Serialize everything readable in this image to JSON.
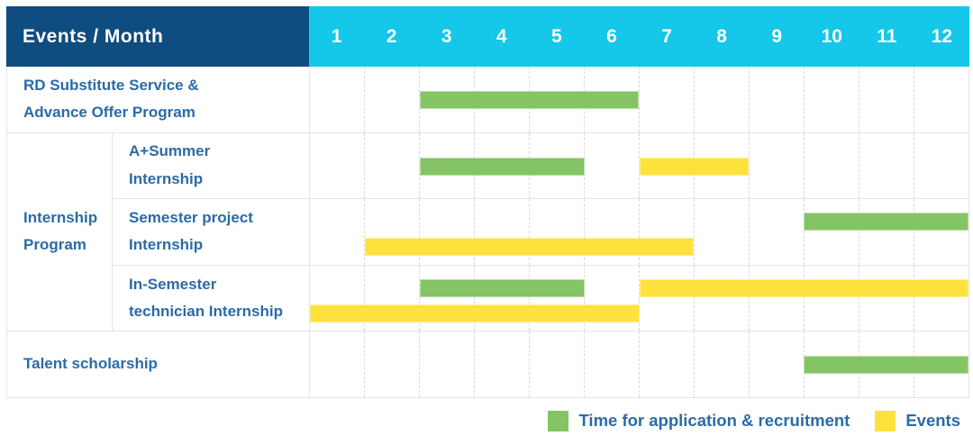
{
  "colors": {
    "header_bg": "#0F4C7F",
    "months_bg": "#15C7E9",
    "green": "#85C464",
    "yellow": "#FDE23E",
    "label_text": "#2B6BA6",
    "grid_line": "#e4e4e4"
  },
  "table": {
    "header_label": "Events / Month",
    "months": [
      "1",
      "2",
      "3",
      "4",
      "5",
      "6",
      "7",
      "8",
      "9",
      "10",
      "11",
      "12"
    ],
    "group": {
      "label": "Internship Program",
      "label_lines": [
        "Internship",
        "Program"
      ],
      "row_span": 3
    },
    "rows": [
      {
        "name": "rd-substitute-service",
        "label": "RD Substitute Service & Advance Offer Program",
        "label_lines": [
          "RD Substitute Service &",
          "Advance Offer Program"
        ],
        "label_span": "full",
        "lines": [
          [
            {
              "color": "green",
              "start": 3,
              "end": 6
            }
          ]
        ]
      },
      {
        "name": "a-plus-summer-internship",
        "label": "A+Summer Internship",
        "label_lines": [
          "A+Summer",
          "Internship"
        ],
        "group_start": true,
        "lines": [
          [
            {
              "color": "green",
              "start": 3,
              "end": 5
            },
            {
              "color": "yellow",
              "start": 7,
              "end": 8
            }
          ]
        ]
      },
      {
        "name": "semester-project-internship",
        "label": "Semester project Internship",
        "label_lines": [
          "Semester project",
          "Internship"
        ],
        "lines": [
          [
            {
              "color": "green",
              "start": 10,
              "end": 12
            }
          ],
          [
            {
              "color": "yellow",
              "start": 2,
              "end": 7
            }
          ]
        ]
      },
      {
        "name": "in-semester-technician-internship",
        "label": "In-Semester technician Internship",
        "label_lines": [
          "In-Semester",
          "technician Internship"
        ],
        "lines": [
          [
            {
              "color": "green",
              "start": 3,
              "end": 5
            },
            {
              "color": "yellow",
              "start": 7,
              "end": 12
            }
          ],
          [
            {
              "color": "yellow",
              "start": 1,
              "end": 6
            }
          ]
        ]
      },
      {
        "name": "talent-scholarship",
        "label": "Talent scholarship",
        "label_lines": [
          "Talent scholarship"
        ],
        "label_span": "full",
        "lines": [
          [
            {
              "color": "green",
              "start": 10,
              "end": 12
            }
          ]
        ]
      }
    ]
  },
  "legend": [
    {
      "name": "application-recruitment",
      "label": "Time for application & recruitment",
      "color": "#85C464"
    },
    {
      "name": "events",
      "label": "Events",
      "color": "#FDE23E"
    }
  ],
  "chart_data": {
    "type": "bar",
    "subtype": "gantt-timeline",
    "title": "Events / Month",
    "x_unit": "month",
    "x_range": [
      1,
      12
    ],
    "x_ticks": [
      1,
      2,
      3,
      4,
      5,
      6,
      7,
      8,
      9,
      10,
      11,
      12
    ],
    "grid": true,
    "legend_position": "bottom-right",
    "categories": [
      "RD Substitute Service & Advance Offer Program",
      "Internship Program / A+Summer Internship",
      "Internship Program / Semester project Internship",
      "Internship Program / In-Semester technician Internship",
      "Talent scholarship"
    ],
    "series": [
      {
        "name": "Time for application & recruitment",
        "color": "#85C464",
        "intervals": [
          {
            "category": "RD Substitute Service & Advance Offer Program",
            "start_month": 3,
            "end_month": 6
          },
          {
            "category": "Internship Program / A+Summer Internship",
            "start_month": 3,
            "end_month": 5
          },
          {
            "category": "Internship Program / Semester project Internship",
            "start_month": 10,
            "end_month": 12
          },
          {
            "category": "Internship Program / In-Semester technician Internship",
            "start_month": 3,
            "end_month": 5
          },
          {
            "category": "Talent scholarship",
            "start_month": 10,
            "end_month": 12
          }
        ]
      },
      {
        "name": "Events",
        "color": "#FDE23E",
        "intervals": [
          {
            "category": "Internship Program / A+Summer Internship",
            "start_month": 7,
            "end_month": 8
          },
          {
            "category": "Internship Program / Semester project Internship",
            "start_month": 2,
            "end_month": 7
          },
          {
            "category": "Internship Program / In-Semester technician Internship",
            "start_month": 1,
            "end_month": 6
          },
          {
            "category": "Internship Program / In-Semester technician Internship",
            "start_month": 7,
            "end_month": 12
          }
        ]
      }
    ]
  }
}
